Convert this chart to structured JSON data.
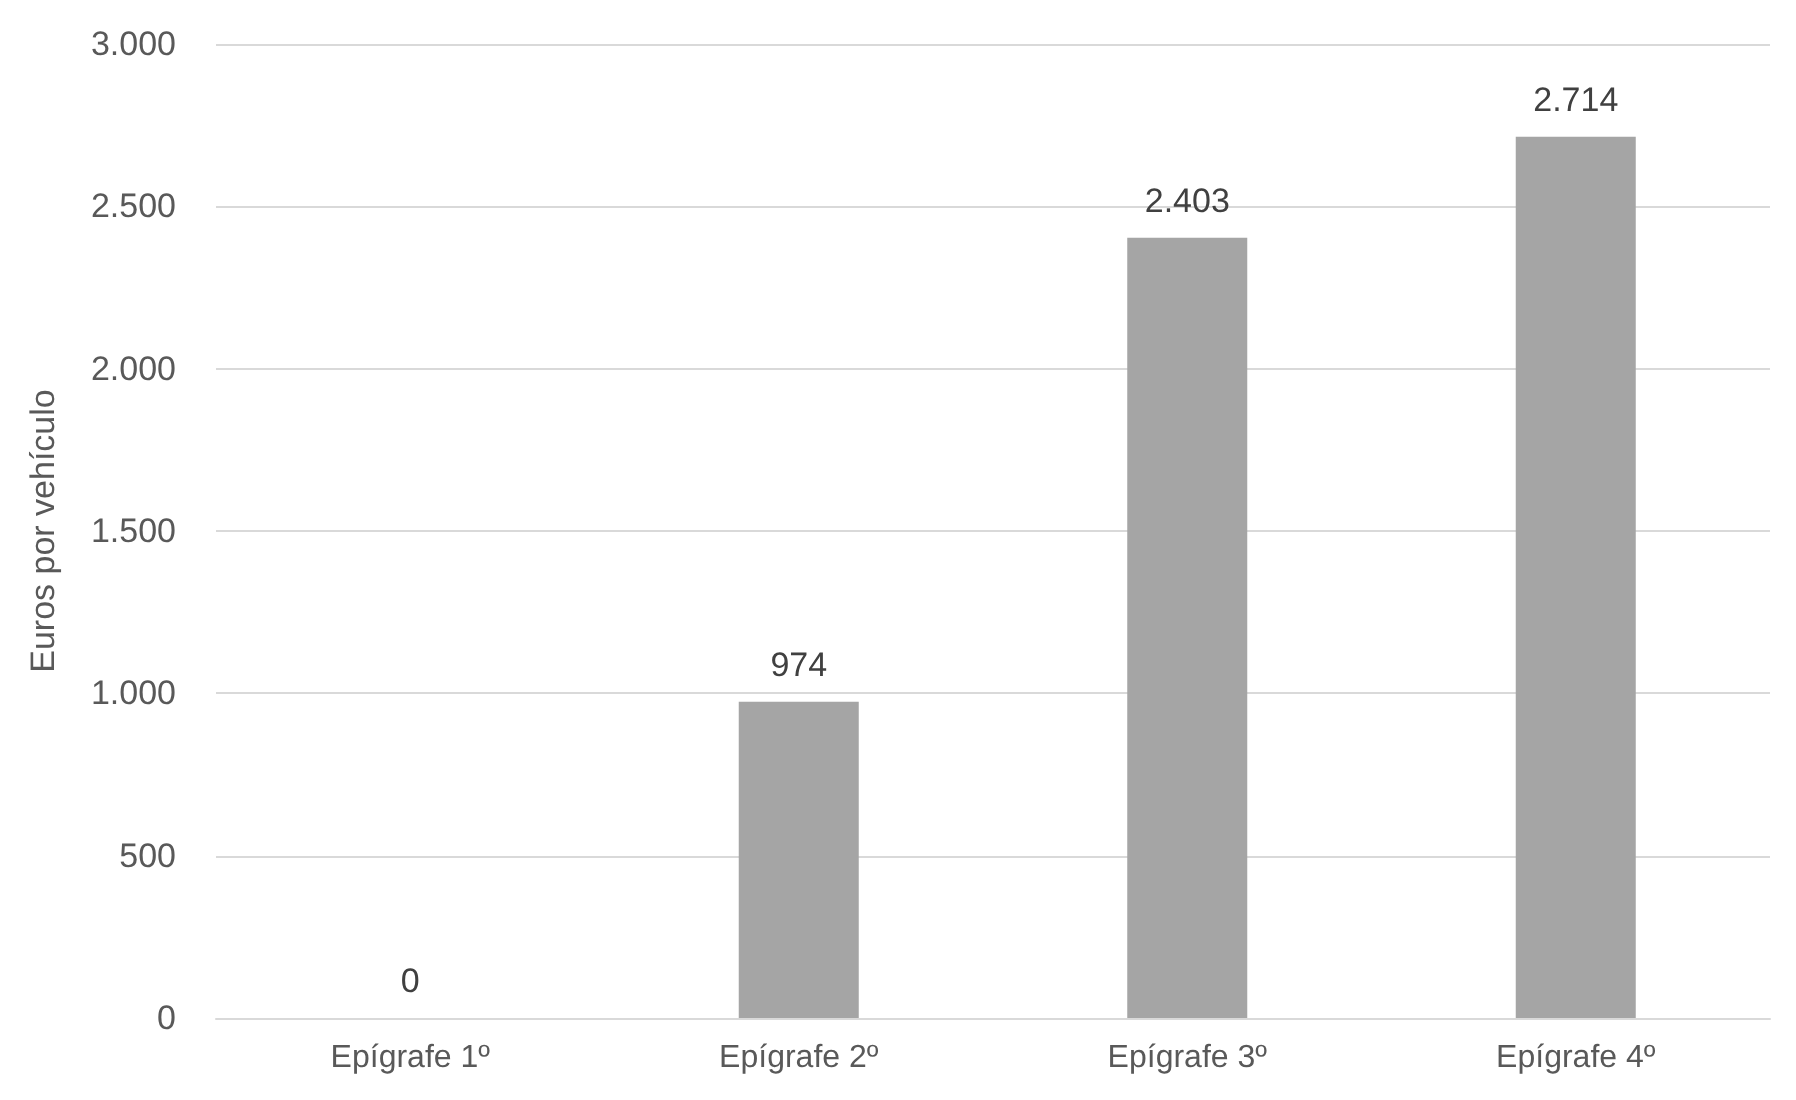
{
  "chart_data": {
    "type": "bar",
    "ylabel": "Euros por vehículo",
    "categories": [
      "Epígrafe 1º",
      "Epígrafe 2º",
      "Epígrafe 3º",
      "Epígrafe 4º"
    ],
    "values": [
      0,
      974,
      2403,
      2714
    ],
    "value_labels": [
      "0",
      "974",
      "2.403",
      "2.714"
    ],
    "color": "#a5a5a5",
    "ylim": [
      0,
      3000
    ],
    "yticks": [
      {
        "value": 0,
        "label": "0"
      },
      {
        "value": 500,
        "label": "500"
      },
      {
        "value": 1000,
        "label": "1.000"
      },
      {
        "value": 1500,
        "label": "1.500"
      },
      {
        "value": 2000,
        "label": "2.000"
      },
      {
        "value": 2500,
        "label": "2.500"
      },
      {
        "value": 3000,
        "label": "3.000"
      }
    ],
    "grid": "y"
  }
}
